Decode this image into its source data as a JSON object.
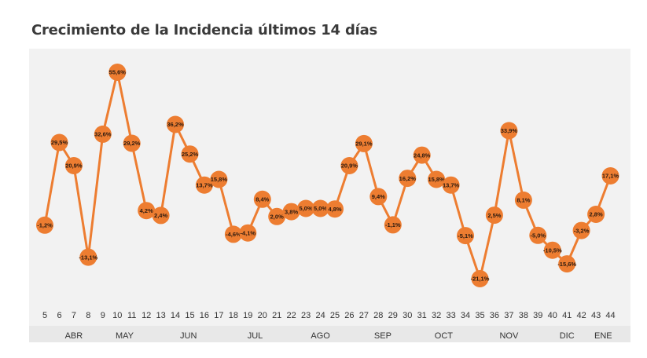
{
  "title": "Crecimiento de la Incidencia últimos 14 días",
  "chart_data": {
    "type": "line",
    "title": "Crecimiento de la Incidencia últimos 14 días",
    "x": [
      5,
      6,
      7,
      8,
      9,
      10,
      11,
      12,
      13,
      14,
      15,
      16,
      17,
      18,
      19,
      20,
      21,
      22,
      23,
      24,
      25,
      26,
      27,
      28,
      29,
      30,
      31,
      32,
      33,
      34,
      35,
      36,
      37,
      38,
      39,
      40,
      41,
      42,
      43,
      44
    ],
    "x_tick_labels": [
      "5",
      "6",
      "7",
      "8",
      "9",
      "10",
      "11",
      "12",
      "13",
      "14",
      "15",
      "16",
      "17",
      "18",
      "19",
      "20",
      "21",
      "22",
      "23",
      "24",
      "25",
      "26",
      "27",
      "28",
      "29",
      "30",
      "31",
      "32",
      "33",
      "34",
      "35",
      "36",
      "37",
      "38",
      "39",
      "40",
      "41",
      "42",
      "43",
      "44"
    ],
    "values": [
      -1.2,
      29.5,
      20.9,
      -13.1,
      32.6,
      55.6,
      29.2,
      4.2,
      2.4,
      36.2,
      25.2,
      13.7,
      15.8,
      -4.6,
      -4.1,
      8.4,
      2.0,
      3.8,
      5.0,
      5.0,
      4.8,
      20.9,
      29.1,
      9.4,
      -1.1,
      16.2,
      24.8,
      15.8,
      13.7,
      -5.1,
      -21.1,
      2.5,
      33.9,
      8.1,
      -5.0,
      -10.5,
      -15.6,
      -3.2,
      2.8,
      17.1
    ],
    "data_labels": [
      "-1,2%",
      "29,5%",
      "20,9%",
      "-13,1%",
      "32,6%",
      "55,6%",
      "29,2%",
      "4,2%",
      "2,4%",
      "36,2%",
      "25,2%",
      "13,7%",
      "15,8%",
      "-4,6%",
      "-4,1%",
      "8,4%",
      "2,0%",
      "3,8%",
      "5,0%",
      "5,0%",
      "4,8%",
      "20,9%",
      "29,1%",
      "9,4%",
      "-1,1%",
      "16,2%",
      "24,8%",
      "15,8%",
      "13,7%",
      "-5,1%",
      "-21,1%",
      "2,5%",
      "33,9%",
      "8,1%",
      "-5,0%",
      "-10,5%",
      "-15,6%",
      "-3,2%",
      "2,8%",
      "17,1%"
    ],
    "months": [
      {
        "label": "ABR",
        "at": 7.0
      },
      {
        "label": "MAY",
        "at": 10.5
      },
      {
        "label": "JUN",
        "at": 14.9
      },
      {
        "label": "JUL",
        "at": 19.5
      },
      {
        "label": "AGO",
        "at": 24.0
      },
      {
        "label": "SEP",
        "at": 28.3
      },
      {
        "label": "OCT",
        "at": 32.5
      },
      {
        "label": "NOV",
        "at": 37.0
      },
      {
        "label": "DIC",
        "at": 41.0
      },
      {
        "label": "ENE",
        "at": 43.5
      }
    ],
    "ylim": [
      -32,
      63
    ],
    "xlabel": "",
    "ylabel": "",
    "grid": false,
    "colors": {
      "line": "#ED7D31",
      "marker": "#ED7D31",
      "plot_bg": "#F2F2F2"
    }
  }
}
